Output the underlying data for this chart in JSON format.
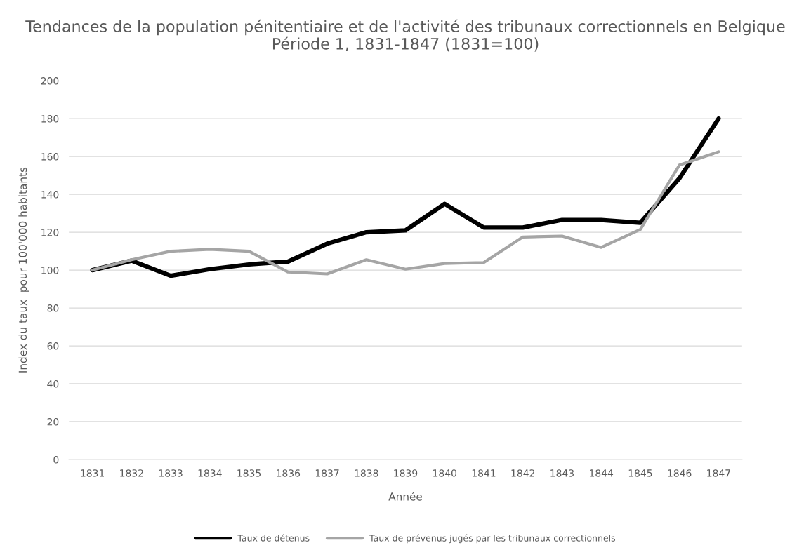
{
  "chart_data": {
    "type": "line",
    "title": "Tendances de la population pénitentiaire et de l'activité des tribunaux correctionnels en Belgique Période 1, 1831-1847 (1831=100)",
    "xlabel": "Année",
    "ylabel": "Index du taux  pour 100'000 habitants",
    "categories": [
      "1831",
      "1832",
      "1833",
      "1834",
      "1835",
      "1836",
      "1837",
      "1838",
      "1839",
      "1840",
      "1841",
      "1842",
      "1843",
      "1844",
      "1845",
      "1846",
      "1847"
    ],
    "series": [
      {
        "name": "Taux de détenus",
        "color": "#000000",
        "values": [
          100,
          105,
          97,
          100.5,
          103,
          104.5,
          114,
          120,
          121,
          135,
          122.5,
          122.5,
          126.5,
          126.5,
          125,
          148.5,
          180
        ]
      },
      {
        "name": "Taux de prévenus jugés par les tribunaux correctionnels",
        "color": "#a5a5a5",
        "values": [
          100,
          105.5,
          110,
          111,
          110,
          99,
          98,
          105.5,
          100.5,
          103.5,
          104,
          117.5,
          118,
          112,
          121.5,
          155.5,
          162.5
        ]
      }
    ],
    "ylim": [
      0,
      200
    ],
    "yticks": [
      0,
      20,
      40,
      60,
      80,
      100,
      120,
      140,
      160,
      180,
      200
    ],
    "grid": "y",
    "legend": "bottom",
    "marker": "none",
    "line_style": "solid"
  }
}
